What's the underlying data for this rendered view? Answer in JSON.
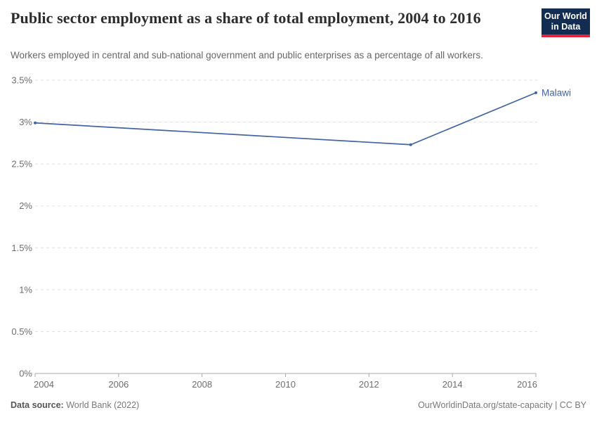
{
  "header": {
    "title": "Public sector employment as a share of total employment, 2004 to 2016",
    "subtitle": "Workers employed in central and sub-national government and public enterprises as a percentage of all workers.",
    "logo": {
      "line1": "Our World",
      "line2": "in Data",
      "bg_color": "#132c52",
      "accent_color": "#e0243a"
    }
  },
  "chart_data": {
    "type": "line",
    "series": [
      {
        "name": "Malawi",
        "color": "#4264a0",
        "x": [
          2004,
          2013,
          2016
        ],
        "values": [
          2.99,
          2.73,
          3.35
        ]
      }
    ],
    "x_ticks": [
      2004,
      2006,
      2008,
      2010,
      2012,
      2014,
      2016
    ],
    "y_ticks": [
      0,
      0.5,
      1,
      1.5,
      2,
      2.5,
      3,
      3.5
    ],
    "y_tick_labels": [
      "0%",
      "0.5%",
      "1%",
      "1.5%",
      "2%",
      "2.5%",
      "3%",
      "3.5%"
    ],
    "xlim": [
      2004,
      2016
    ],
    "ylim": [
      0,
      3.5
    ],
    "grid": "horizontal-dashed",
    "legend_position": "right-of-line-end",
    "colors": {
      "grid": "#dddddd",
      "axis": "#a9a9a9",
      "tick_label": "#6e6e6e"
    }
  },
  "footer": {
    "source_label": "Data source:",
    "source_value": "World Bank (2022)",
    "right_text": "OurWorldinData.org/state-capacity | CC BY"
  }
}
